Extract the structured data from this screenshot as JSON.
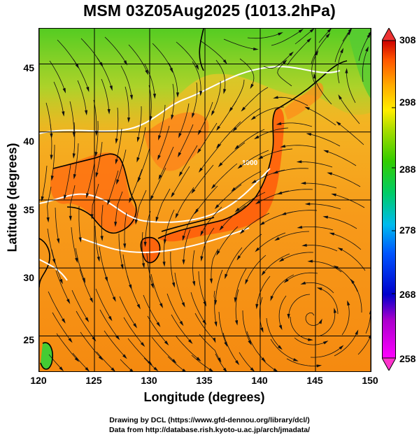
{
  "title": "MSM 03Z05Aug2025 (1013.2hPa)",
  "axes": {
    "xlabel": "Longitude (degrees)",
    "ylabel": "Latitude  (degrees)",
    "xticks": [
      "120",
      "125",
      "130",
      "135",
      "140",
      "145",
      "150"
    ],
    "yticks": [
      "45",
      "40",
      "35",
      "30",
      "25"
    ],
    "xlim": [
      120,
      150
    ],
    "ylim": [
      22.4,
      47.6
    ],
    "grid": true
  },
  "colorbar": {
    "ticks": [
      "308",
      "298",
      "288",
      "278",
      "268",
      "258"
    ],
    "range": [
      258,
      308
    ],
    "colors": [
      "#ff00ff",
      "#0000cc",
      "#00aaff",
      "#00cc66",
      "#44cc00",
      "#ddee00",
      "#ffaa00",
      "#ff4400",
      "#cc0000"
    ]
  },
  "map": {
    "field": "temperature",
    "contour_label": "1000",
    "land_color": "#ff5500",
    "sea_color": "#ffaa22",
    "north_color": "#66cc00"
  },
  "credits": {
    "line1": "Drawing by DCL (https://www.gfd-dennou.org/library/dcl/)",
    "line2": "Data from http://database.rish.kyoto-u.ac.jp/arch/jmadata/"
  }
}
